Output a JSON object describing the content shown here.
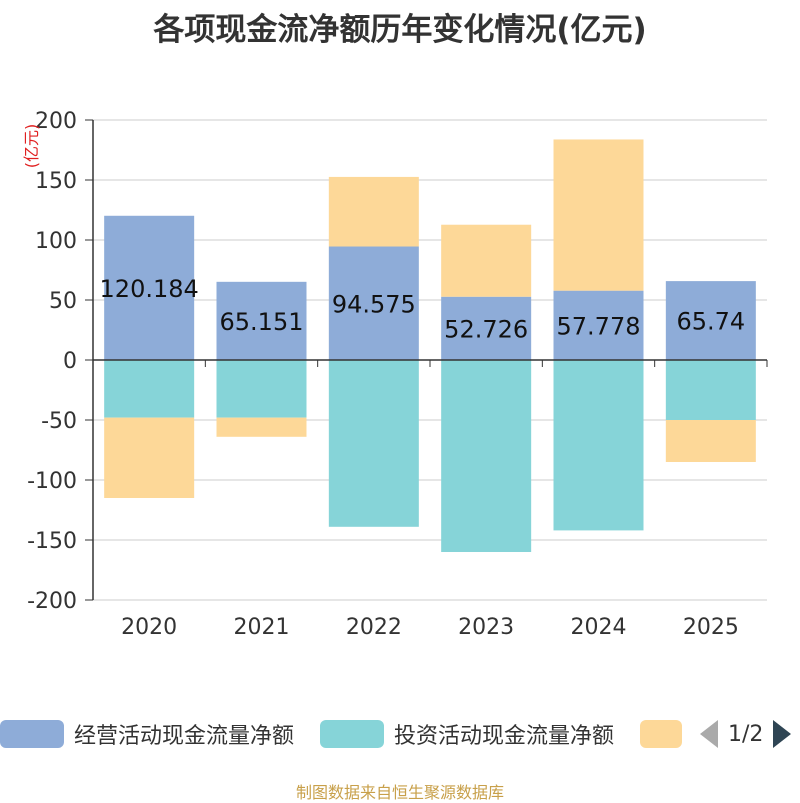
{
  "title": "各项现金流净额历年变化情况(亿元)",
  "source": "制图数据来自恒生聚源数据库",
  "chart_data": {
    "type": "bar",
    "stacked": true,
    "categories": [
      "2020",
      "2021",
      "2022",
      "2023",
      "2024",
      "2025"
    ],
    "ylabel": "(亿元)",
    "ylim": [
      -200,
      200
    ],
    "yticks": [
      200,
      150,
      100,
      50,
      0,
      -50,
      -100,
      -150,
      -200
    ],
    "grid": true,
    "series": [
      {
        "name": "经营活动现金流量净额",
        "color": "#8eacd8",
        "values": [
          120.184,
          65.151,
          94.575,
          52.726,
          57.778,
          65.74
        ],
        "labels": [
          "120.184",
          "65.151",
          "94.575",
          "52.726",
          "57.778",
          "65.74"
        ]
      },
      {
        "name": "投资活动现金流量净额",
        "color": "#86d4d8",
        "values": [
          -48,
          -48,
          -139,
          -160,
          -142,
          -50
        ]
      },
      {
        "name": "",
        "color": "#fdd898",
        "values": [
          -67,
          -16,
          58,
          60,
          126,
          -35
        ]
      }
    ]
  },
  "legend": {
    "items": [
      {
        "label": "经营活动现金流量净额",
        "color": "#8eacd8"
      },
      {
        "label": "投资活动现金流量净额",
        "color": "#86d4d8"
      },
      {
        "label": "",
        "color": "#fdd898"
      }
    ],
    "page": "1/2"
  }
}
